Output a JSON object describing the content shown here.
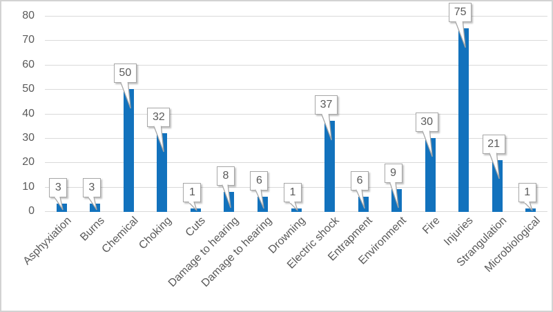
{
  "window": {
    "background_color": "#FFFFFF",
    "border_color": "#D2D2D2"
  },
  "chart_data": {
    "type": "bar",
    "title": "",
    "xlabel": "",
    "ylabel": "",
    "categories": [
      "Asphyxiation",
      "Burns",
      "Chemical",
      "Choking",
      "Cuts",
      "Damage to hearing",
      "Damage to hearing",
      "Drowning",
      "Electric shock",
      "Entrapment",
      "Environment",
      "Fire",
      "Injuries",
      "Strangulation",
      "Microbiological"
    ],
    "values": [
      3,
      3,
      50,
      32,
      1,
      8,
      6,
      1,
      37,
      6,
      9,
      30,
      75,
      21,
      1
    ],
    "ylim": [
      0,
      80
    ],
    "yticks": [
      0,
      10,
      20,
      30,
      40,
      50,
      60,
      70,
      80
    ],
    "grid": true,
    "legend": false,
    "bar_color": "#1272BD",
    "gridline_color": "#D9D9D9",
    "tick_label_color": "#595959",
    "category_label_rotation_deg": 45,
    "data_labels": {
      "style": "callout",
      "fill": "#FFFFFF",
      "border_color": "#A6A6A6",
      "text_color": "#595959"
    }
  }
}
